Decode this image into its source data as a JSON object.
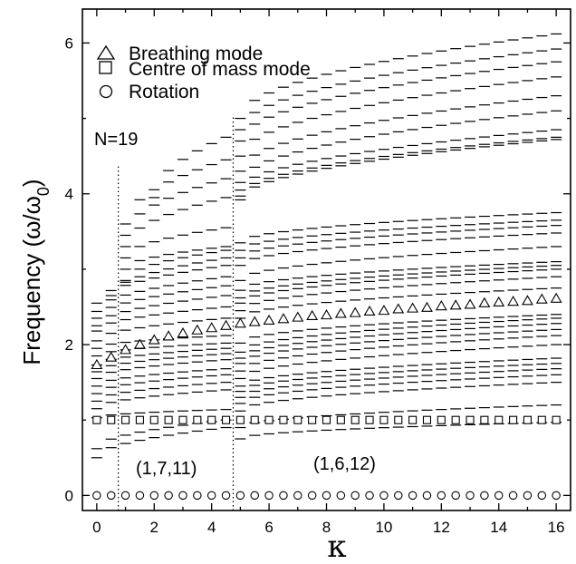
{
  "chart_data": {
    "type": "scatter",
    "title": "",
    "xlabel": "κ",
    "ylabel_main": "Frequency (ω/ω",
    "ylabel_sub": "0",
    "ylabel_close": ")",
    "xlim": [
      -0.5,
      16.5
    ],
    "ylim": [
      -0.2,
      6.45
    ],
    "xticks": [
      0,
      2,
      4,
      6,
      8,
      10,
      12,
      14,
      16
    ],
    "yticks": [
      0,
      2,
      4,
      6
    ],
    "grid": false,
    "legend_position": "top-left",
    "legend": [
      {
        "symbol": "triangle",
        "label": "Breathing mode"
      },
      {
        "symbol": "square",
        "label": "Centre of mass mode"
      },
      {
        "symbol": "circle",
        "label": "Rotation"
      }
    ],
    "annotations": {
      "n_label": "N=19",
      "region_left": "(1,7,11)",
      "region_right": "(1,6,12)"
    },
    "transitions": [
      {
        "x": 0.75,
        "ymax": 4.4
      },
      {
        "x": 4.75,
        "ymax": 5.05
      }
    ],
    "kappa": [
      0,
      0.5,
      1,
      1.5,
      2,
      2.5,
      3,
      3.5,
      4,
      4.5,
      5,
      5.5,
      6,
      6.5,
      7,
      7.5,
      8,
      8.5,
      9,
      9.5,
      10,
      10.5,
      11,
      11.5,
      12,
      12.5,
      13,
      13.5,
      14,
      14.5,
      15,
      15.5,
      16
    ],
    "series": [
      {
        "name": "Breathing mode",
        "marker": "triangle",
        "values": [
          1.73,
          1.83,
          1.93,
          2.0,
          2.06,
          2.11,
          2.15,
          2.19,
          2.22,
          2.25,
          2.28,
          2.3,
          2.32,
          2.34,
          2.36,
          2.38,
          2.39,
          2.41,
          2.42,
          2.44,
          2.45,
          2.47,
          2.48,
          2.49,
          2.51,
          2.52,
          2.53,
          2.55,
          2.56,
          2.57,
          2.58,
          2.6,
          2.61
        ]
      },
      {
        "name": "Centre of mass mode",
        "marker": "square",
        "values": [
          1,
          1,
          1,
          1,
          1,
          1,
          1,
          1,
          1,
          1,
          1,
          1,
          1,
          1,
          1,
          1,
          1,
          1,
          1,
          1,
          1,
          1,
          1,
          1,
          1,
          1,
          1,
          1,
          1,
          1,
          1,
          1,
          1
        ]
      },
      {
        "name": "Rotation",
        "marker": "circle",
        "values": [
          0,
          0,
          0,
          0,
          0,
          0,
          0,
          0,
          0,
          0,
          0,
          0,
          0,
          0,
          0,
          0,
          0,
          0,
          0,
          0,
          0,
          0,
          0,
          0,
          0,
          0,
          0,
          0,
          0,
          0,
          0,
          0,
          0
        ]
      }
    ],
    "other_modes": {
      "marker": "dash",
      "description_free": true,
      "bands_left": [
        {
          "x_from": 0,
          "x_to": 4.5,
          "y_start": 0.5,
          "y_end": 0.9
        },
        {
          "x_from": 0,
          "x_to": 4.5,
          "y_start": 0.62,
          "y_end": 1.0
        },
        {
          "x_from": 0,
          "x_to": 4.5,
          "y_start": 1.03,
          "y_end": 1.14
        },
        {
          "x_from": 0,
          "x_to": 4.5,
          "y_start": 1.15,
          "y_end": 1.4
        },
        {
          "x_from": 0,
          "x_to": 4.5,
          "y_start": 1.25,
          "y_end": 1.5
        },
        {
          "x_from": 0,
          "x_to": 4.5,
          "y_start": 1.35,
          "y_end": 1.6
        },
        {
          "x_from": 0,
          "x_to": 4.5,
          "y_start": 1.45,
          "y_end": 1.68
        },
        {
          "x_from": 0,
          "x_to": 4.5,
          "y_start": 1.55,
          "y_end": 1.8
        },
        {
          "x_from": 0,
          "x_to": 4.5,
          "y_start": 1.64,
          "y_end": 1.88
        },
        {
          "x_from": 0,
          "x_to": 4.5,
          "y_start": 1.73,
          "y_end": 1.95
        },
        {
          "x_from": 0,
          "x_to": 4.5,
          "y_start": 1.85,
          "y_end": 2.02
        },
        {
          "x_from": 0,
          "x_to": 4.5,
          "y_start": 1.95,
          "y_end": 2.12
        },
        {
          "x_from": 0,
          "x_to": 4.5,
          "y_start": 2.05,
          "y_end": 2.35
        },
        {
          "x_from": 0,
          "x_to": 4.5,
          "y_start": 2.18,
          "y_end": 2.5
        },
        {
          "x_from": 0,
          "x_to": 4.5,
          "y_start": 2.25,
          "y_end": 2.65
        },
        {
          "x_from": 0,
          "x_to": 4.5,
          "y_start": 2.35,
          "y_end": 2.78
        },
        {
          "x_from": 0,
          "x_to": 4.5,
          "y_start": 2.44,
          "y_end": 2.9
        },
        {
          "x_from": 0,
          "x_to": 4.5,
          "y_start": 2.55,
          "y_end": 3.05
        },
        {
          "x_from": 0.5,
          "x_to": 4.5,
          "y_start": 2.65,
          "y_end": 3.15
        },
        {
          "x_from": 1,
          "x_to": 4.5,
          "y_start": 2.85,
          "y_end": 3.25
        },
        {
          "x_from": 1,
          "x_to": 4.5,
          "y_start": 3.0,
          "y_end": 3.3
        },
        {
          "x_from": 1,
          "x_to": 4.5,
          "y_start": 3.15,
          "y_end": 3.55
        },
        {
          "x_from": 1,
          "x_to": 4.5,
          "y_start": 3.3,
          "y_end": 3.95
        },
        {
          "x_from": 1,
          "x_to": 4.5,
          "y_start": 3.45,
          "y_end": 4.2
        },
        {
          "x_from": 1,
          "x_to": 4.5,
          "y_start": 3.6,
          "y_end": 4.45
        },
        {
          "x_from": 2,
          "x_to": 4.5,
          "y_start": 3.95,
          "y_end": 4.75
        }
      ],
      "bands_right": [
        {
          "x_from": 5,
          "x_to": 16,
          "y_start": 0.75,
          "y_end": 0.97
        },
        {
          "x_from": 5,
          "x_to": 16,
          "y_start": 0.9,
          "y_end": 1.2
        },
        {
          "x_from": 5,
          "x_to": 16,
          "y_start": 1.12,
          "y_end": 1.5
        },
        {
          "x_from": 5,
          "x_to": 16,
          "y_start": 1.22,
          "y_end": 1.6
        },
        {
          "x_from": 5,
          "x_to": 16,
          "y_start": 1.3,
          "y_end": 1.68
        },
        {
          "x_from": 5,
          "x_to": 16,
          "y_start": 1.38,
          "y_end": 1.75
        },
        {
          "x_from": 5,
          "x_to": 16,
          "y_start": 1.45,
          "y_end": 1.82
        },
        {
          "x_from": 5,
          "x_to": 16,
          "y_start": 1.55,
          "y_end": 2.0
        },
        {
          "x_from": 5,
          "x_to": 16,
          "y_start": 1.65,
          "y_end": 2.12
        },
        {
          "x_from": 5,
          "x_to": 16,
          "y_start": 1.75,
          "y_end": 2.2
        },
        {
          "x_from": 5,
          "x_to": 16,
          "y_start": 1.82,
          "y_end": 2.28
        },
        {
          "x_from": 5,
          "x_to": 16,
          "y_start": 1.9,
          "y_end": 2.35
        },
        {
          "x_from": 5,
          "x_to": 16,
          "y_start": 2.02,
          "y_end": 2.4
        },
        {
          "x_from": 5,
          "x_to": 16,
          "y_start": 2.35,
          "y_end": 2.75
        },
        {
          "x_from": 5,
          "x_to": 16,
          "y_start": 2.45,
          "y_end": 2.9
        },
        {
          "x_from": 5,
          "x_to": 16,
          "y_start": 2.55,
          "y_end": 3.0
        },
        {
          "x_from": 5,
          "x_to": 16,
          "y_start": 2.62,
          "y_end": 3.05
        },
        {
          "x_from": 5,
          "x_to": 16,
          "y_start": 2.72,
          "y_end": 3.1
        },
        {
          "x_from": 5,
          "x_to": 16,
          "y_start": 2.85,
          "y_end": 3.3
        },
        {
          "x_from": 5,
          "x_to": 16,
          "y_start": 3.05,
          "y_end": 3.48
        },
        {
          "x_from": 5,
          "x_to": 16,
          "y_start": 3.15,
          "y_end": 3.58
        },
        {
          "x_from": 5,
          "x_to": 16,
          "y_start": 3.25,
          "y_end": 3.65
        },
        {
          "x_from": 5,
          "x_to": 16,
          "y_start": 3.35,
          "y_end": 3.75
        },
        {
          "x_from": 5,
          "x_to": 16,
          "y_start": 3.92,
          "y_end": 4.72
        },
        {
          "x_from": 5,
          "x_to": 16,
          "y_start": 3.97,
          "y_end": 4.75
        },
        {
          "x_from": 5,
          "x_to": 16,
          "y_start": 4.05,
          "y_end": 4.85
        },
        {
          "x_from": 5,
          "x_to": 16,
          "y_start": 4.15,
          "y_end": 5.1
        },
        {
          "x_from": 5,
          "x_to": 16,
          "y_start": 4.3,
          "y_end": 5.3
        },
        {
          "x_from": 5,
          "x_to": 16,
          "y_start": 4.5,
          "y_end": 5.55
        },
        {
          "x_from": 5,
          "x_to": 16,
          "y_start": 4.7,
          "y_end": 5.75
        },
        {
          "x_from": 5,
          "x_to": 16,
          "y_start": 4.85,
          "y_end": 5.92
        },
        {
          "x_from": 5,
          "x_to": 16,
          "y_start": 5.0,
          "y_end": 6.12
        }
      ]
    }
  }
}
